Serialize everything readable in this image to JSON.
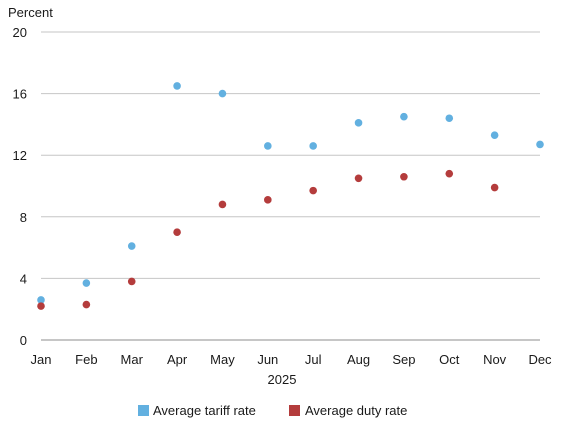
{
  "chart_data": {
    "type": "scatter",
    "ylabel": "Percent",
    "xlabel": "2025",
    "ylim": [
      0,
      20
    ],
    "yticks": [
      "0",
      "4",
      "8",
      "12",
      "16",
      "20"
    ],
    "grid": true,
    "legend_position": "bottom-center",
    "categories": [
      "Jan",
      "Feb",
      "Mar",
      "Apr",
      "May",
      "Jun",
      "Jul",
      "Aug",
      "Sep",
      "Oct",
      "Nov",
      "Dec"
    ],
    "series": [
      {
        "name": "Average tariff rate",
        "color": "#62b0e0",
        "values": [
          2.6,
          3.7,
          6.1,
          16.5,
          16.0,
          12.6,
          12.6,
          14.1,
          14.5,
          14.4,
          13.3,
          12.7
        ]
      },
      {
        "name": "Average duty rate",
        "color": "#b43c3c",
        "values": [
          2.2,
          2.3,
          3.8,
          7.0,
          8.8,
          9.1,
          9.7,
          10.5,
          10.6,
          10.8,
          9.9,
          null
        ]
      }
    ]
  }
}
